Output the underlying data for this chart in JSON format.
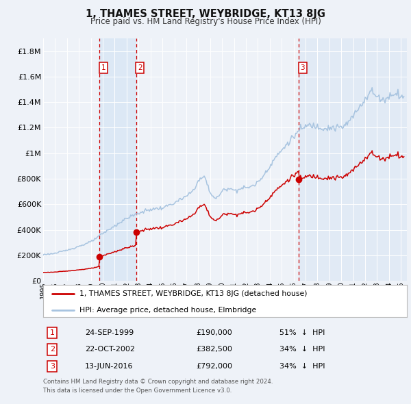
{
  "title": "1, THAMES STREET, WEYBRIDGE, KT13 8JG",
  "subtitle": "Price paid vs. HM Land Registry's House Price Index (HPI)",
  "legend_line1": "1, THAMES STREET, WEYBRIDGE, KT13 8JG (detached house)",
  "legend_line2": "HPI: Average price, detached house, Elmbridge",
  "footnote1": "Contains HM Land Registry data © Crown copyright and database right 2024.",
  "footnote2": "This data is licensed under the Open Government Licence v3.0.",
  "transactions": [
    {
      "num": 1,
      "date": "24-SEP-1999",
      "price": 190000,
      "pct": "51%",
      "direction": "↓",
      "label": "HPI",
      "year_dec": 1999.73
    },
    {
      "num": 2,
      "date": "22-OCT-2002",
      "price": 382500,
      "pct": "34%",
      "direction": "↓",
      "label": "HPI",
      "year_dec": 2002.8
    },
    {
      "num": 3,
      "date": "13-JUN-2016",
      "price": 792000,
      "pct": "34%",
      "direction": "↓",
      "label": "HPI",
      "year_dec": 2016.45
    }
  ],
  "hpi_color": "#a8c4e0",
  "price_color": "#cc0000",
  "dashed_color": "#cc0000",
  "shade_color": "#dce8f5",
  "background_color": "#eef2f8",
  "plot_bg_color": "#eef2f8",
  "grid_color": "#ffffff",
  "ylim": [
    0,
    1900000
  ],
  "yticks": [
    0,
    200000,
    400000,
    600000,
    800000,
    1000000,
    1200000,
    1400000,
    1600000,
    1800000
  ],
  "ytick_labels": [
    "£0",
    "£200K",
    "£400K",
    "£600K",
    "£800K",
    "£1M",
    "£1.2M",
    "£1.4M",
    "£1.6M",
    "£1.8M"
  ],
  "xlim_start": 1995.25,
  "xlim_end": 2025.5
}
